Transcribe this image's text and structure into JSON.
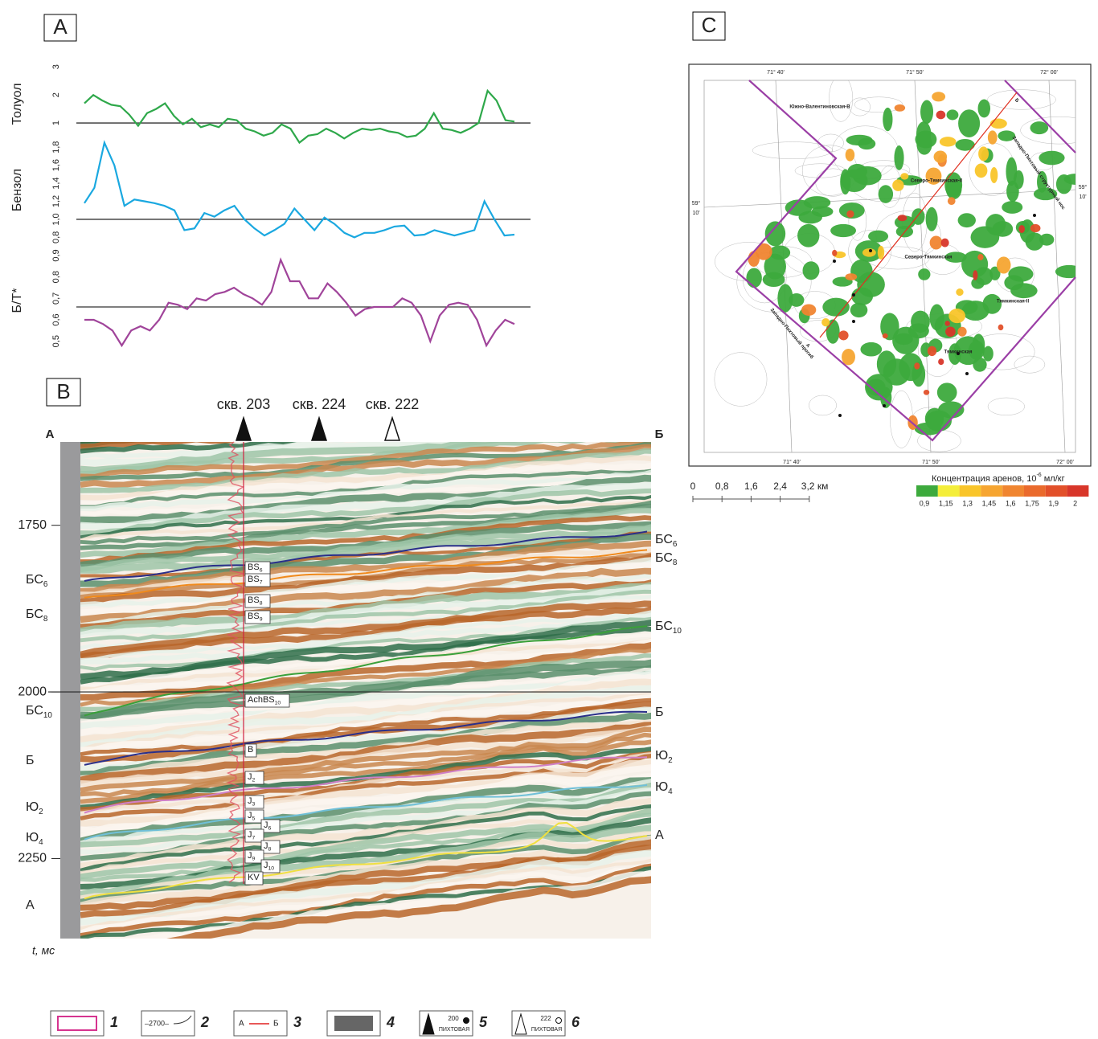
{
  "panel_labels": [
    "A",
    "B",
    "C"
  ],
  "chart_data": [
    {
      "type": "line",
      "ylabel": "Толуол",
      "ylim": [
        0.2,
        3.15
      ],
      "yticks": [
        1,
        2,
        3
      ],
      "reference_line": 1,
      "series": [
        {
          "color": "#2ea84a",
          "values": [
            1.7,
            2.0,
            1.8,
            1.65,
            1.6,
            1.3,
            0.9,
            1.35,
            1.5,
            1.7,
            1.25,
            0.95,
            1.15,
            0.85,
            0.95,
            0.85,
            1.15,
            1.1,
            0.8,
            0.7,
            0.55,
            0.65,
            0.95,
            0.8,
            0.3,
            0.55,
            0.6,
            0.8,
            0.65,
            0.45,
            0.65,
            0.8,
            0.75,
            0.8,
            0.7,
            0.65,
            0.5,
            0.55,
            0.8,
            1.35,
            0.8,
            0.75,
            0.65,
            0.8,
            1.0,
            2.15,
            1.8,
            1.1,
            1.05
          ]
        }
      ]
    },
    {
      "type": "line",
      "ylabel": "Бензол",
      "ylim": [
        0.75,
        1.9
      ],
      "yticks": [
        {
          "value": 0.8,
          "label": "0,8"
        },
        {
          "value": 1.0,
          "label": "1,0"
        },
        {
          "value": 1.2,
          "label": "1,2"
        },
        {
          "value": 1.4,
          "label": "1,4"
        },
        {
          "value": 1.6,
          "label": "1,6"
        },
        {
          "value": 1.8,
          "label": "1,8"
        }
      ],
      "reference_line": 1.0,
      "series": [
        {
          "color": "#1aa8e0",
          "values": [
            1.18,
            1.35,
            1.85,
            1.6,
            1.15,
            1.22,
            1.2,
            1.18,
            1.15,
            1.1,
            0.88,
            0.9,
            1.07,
            1.03,
            1.1,
            1.15,
            1.0,
            0.9,
            0.82,
            0.88,
            0.95,
            1.12,
            1.0,
            0.88,
            1.02,
            0.95,
            0.85,
            0.8,
            0.85,
            0.85,
            0.88,
            0.92,
            0.93,
            0.82,
            0.83,
            0.88,
            0.85,
            0.82,
            0.85,
            0.88,
            1.2,
            1.0,
            0.82,
            0.83
          ]
        }
      ]
    },
    {
      "type": "line",
      "ylabel": "Б/Т*",
      "ylim": [
        0.45,
        0.93
      ],
      "yticks": [
        {
          "value": 0.5,
          "label": "0,5"
        },
        {
          "value": 0.6,
          "label": "0,6"
        },
        {
          "value": 0.7,
          "label": "0,7"
        },
        {
          "value": 0.8,
          "label": "0,8"
        },
        {
          "value": 0.9,
          "label": "0,9"
        }
      ],
      "reference_line": 0.66,
      "series": [
        {
          "color": "#a0449a",
          "values": [
            0.6,
            0.6,
            0.58,
            0.55,
            0.48,
            0.55,
            0.57,
            0.55,
            0.6,
            0.68,
            0.67,
            0.65,
            0.7,
            0.69,
            0.72,
            0.73,
            0.75,
            0.72,
            0.7,
            0.67,
            0.73,
            0.88,
            0.78,
            0.78,
            0.7,
            0.7,
            0.77,
            0.73,
            0.68,
            0.62,
            0.65,
            0.66,
            0.66,
            0.66,
            0.7,
            0.68,
            0.62,
            0.5,
            0.62,
            0.67,
            0.68,
            0.67,
            0.6,
            0.48,
            0.55,
            0.6,
            0.58
          ]
        }
      ]
    }
  ],
  "section": {
    "ylim": [
      1625,
      2370
    ],
    "yticks": [
      1750,
      2000,
      2250
    ],
    "reference_line": 2000,
    "ylabel": "t, мс",
    "corner_left": "А",
    "corner_right": "Б",
    "wells": [
      {
        "label": "скв. 203",
        "filled": true
      },
      {
        "label": "скв. 224",
        "filled": true
      },
      {
        "label": "скв. 222",
        "filled": false
      }
    ],
    "horizons": [
      {
        "base": "БС",
        "sub": "6",
        "color": "#2a2f8a"
      },
      {
        "base": "БС",
        "sub": "8",
        "color": "#f08a1c"
      },
      {
        "base": "БС",
        "sub": "10",
        "color": "#3aa03a"
      },
      {
        "base": "Б",
        "color": "#2a2f8a"
      },
      {
        "base": "Ю",
        "sub": "2",
        "color": "#d080c8"
      },
      {
        "base": "Ю",
        "sub": "4",
        "color": "#70c0d8"
      },
      {
        "base": "А",
        "color": "#f0e040"
      }
    ],
    "well_markers": [
      {
        "base": "BS",
        "sub": "6"
      },
      {
        "base": "BS",
        "sub": "7"
      },
      {
        "base": "BS",
        "sub": "8"
      },
      {
        "base": "BS",
        "sub": "9"
      },
      {
        "base": "AchBS",
        "sub": "10"
      },
      {
        "base": "B"
      },
      {
        "base": "J",
        "sub": "2"
      },
      {
        "base": "J",
        "sub": "3"
      },
      {
        "base": "J",
        "sub": "5"
      },
      {
        "base": "J",
        "sub": "6"
      },
      {
        "base": "J",
        "sub": "7"
      },
      {
        "base": "J",
        "sub": "8"
      },
      {
        "base": "J",
        "sub": "9"
      },
      {
        "base": "J",
        "sub": "10"
      },
      {
        "base": "KV"
      }
    ]
  },
  "map": {
    "lon_labels": [
      "71° 40'",
      "71° 50'",
      "72° 00'"
    ],
    "lat_label": [
      "59°",
      "10'"
    ],
    "places": [
      "Южно-Валентиновская-В",
      "Северо-Тямкинская-II",
      "Северо-Тямкинская",
      "Тямкинская-II",
      "Тямкинская",
      "Западно-Пихтовый структурный нос",
      "Западно-Пихтовый прогиб",
      "Б",
      "А"
    ],
    "scale_labels": [
      "0",
      "0,8",
      "1,6",
      "2,4",
      "3,2 км"
    ],
    "color_scale": {
      "title": "Концентрация аренов, 10",
      "sup": "-6",
      "unit": " мл/кг",
      "items": [
        {
          "label": "0,9",
          "color": "#3daa3d"
        },
        {
          "label": "1,15",
          "color": "#f4ee3a"
        },
        {
          "label": "1,3",
          "color": "#f9c52a"
        },
        {
          "label": "1,45",
          "color": "#f6a531"
        },
        {
          "label": "1,6",
          "color": "#f08530"
        },
        {
          "label": "1,75",
          "color": "#ea6a2c"
        },
        {
          "label": "1,9",
          "color": "#e2502a"
        },
        {
          "label": "2",
          "color": "#d8362a"
        }
      ]
    }
  },
  "legend": [
    {
      "number": "1"
    },
    {
      "number": "2",
      "text": "–2700–"
    },
    {
      "number": "3",
      "text": [
        "А",
        "Б"
      ]
    },
    {
      "number": "4"
    },
    {
      "number": "5",
      "text": [
        "200",
        "ПИХТОВАЯ"
      ]
    },
    {
      "number": "6",
      "text": [
        "222",
        "ПИХТОВАЯ"
      ]
    }
  ]
}
